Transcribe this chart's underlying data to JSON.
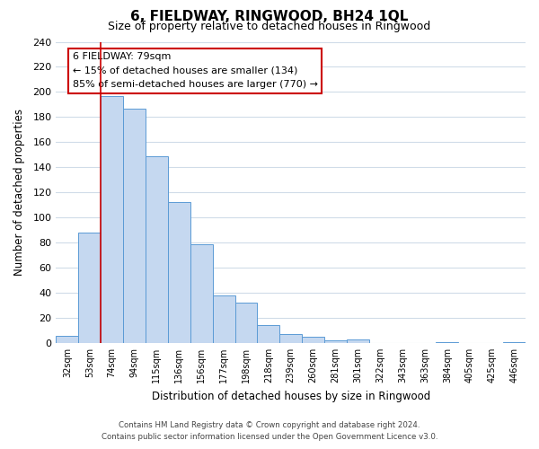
{
  "title": "6, FIELDWAY, RINGWOOD, BH24 1QL",
  "subtitle": "Size of property relative to detached houses in Ringwood",
  "xlabel": "Distribution of detached houses by size in Ringwood",
  "ylabel": "Number of detached properties",
  "bar_labels": [
    "32sqm",
    "53sqm",
    "74sqm",
    "94sqm",
    "115sqm",
    "136sqm",
    "156sqm",
    "177sqm",
    "198sqm",
    "218sqm",
    "239sqm",
    "260sqm",
    "281sqm",
    "301sqm",
    "322sqm",
    "343sqm",
    "363sqm",
    "384sqm",
    "405sqm",
    "425sqm",
    "446sqm"
  ],
  "bar_values": [
    6,
    88,
    197,
    187,
    149,
    112,
    79,
    38,
    32,
    14,
    7,
    5,
    2,
    3,
    0,
    0,
    0,
    1,
    0,
    0,
    1
  ],
  "bar_color": "#c5d8f0",
  "bar_edge_color": "#5b9bd5",
  "property_line_index": 2,
  "annotation_text_line1": "6 FIELDWAY: 79sqm",
  "annotation_text_line2": "← 15% of detached houses are smaller (134)",
  "annotation_text_line3": "85% of semi-detached houses are larger (770) →",
  "annotation_box_color": "#ffffff",
  "annotation_box_edge_color": "#cc0000",
  "red_line_color": "#cc0000",
  "ylim": [
    0,
    240
  ],
  "yticks": [
    0,
    20,
    40,
    60,
    80,
    100,
    120,
    140,
    160,
    180,
    200,
    220,
    240
  ],
  "footer_line1": "Contains HM Land Registry data © Crown copyright and database right 2024.",
  "footer_line2": "Contains public sector information licensed under the Open Government Licence v3.0.",
  "bg_color": "#ffffff",
  "grid_color": "#d0dce8"
}
